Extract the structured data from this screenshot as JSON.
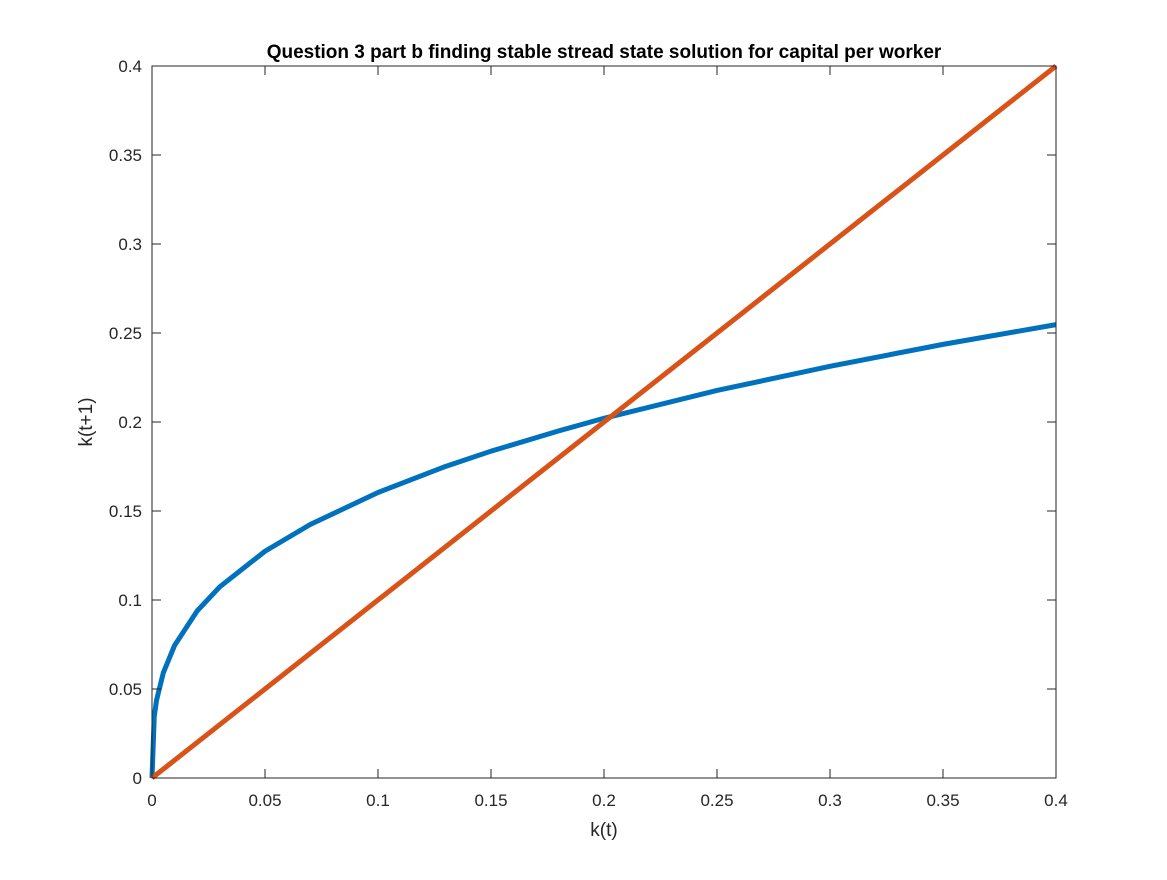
{
  "chart_data": {
    "type": "line",
    "title": "Question 3 part b finding stable stread state solution for capital per worker",
    "xlabel": "k(t)",
    "ylabel": "k(t+1)",
    "xlim": [
      0,
      0.4
    ],
    "ylim": [
      0,
      0.4
    ],
    "xticks": [
      0,
      0.05,
      0.1,
      0.15,
      0.2,
      0.25,
      0.3,
      0.35,
      0.4
    ],
    "xtick_labels": [
      "0",
      "0.05",
      "0.1",
      "0.15",
      "0.2",
      "0.25",
      "0.3",
      "0.35",
      "0.4"
    ],
    "yticks": [
      0,
      0.05,
      0.1,
      0.15,
      0.2,
      0.25,
      0.3,
      0.35,
      0.4
    ],
    "ytick_labels": [
      "0",
      "0.05",
      "0.1",
      "0.15",
      "0.2",
      "0.25",
      "0.3",
      "0.35",
      "0.4"
    ],
    "grid": false,
    "box": true,
    "series": [
      {
        "color": "#0072BD",
        "x": [
          0,
          0.001,
          0.002,
          0.005,
          0.01,
          0.02,
          0.03,
          0.05,
          0.07,
          0.1,
          0.13,
          0.15,
          0.18,
          0.2,
          0.25,
          0.3,
          0.35,
          0.4
        ],
        "y": [
          0,
          0.0346,
          0.0436,
          0.0591,
          0.0745,
          0.0939,
          0.1074,
          0.1274,
          0.1424,
          0.1604,
          0.1751,
          0.1836,
          0.195,
          0.2021,
          0.2177,
          0.2313,
          0.2436,
          0.2547
        ]
      },
      {
        "color": "#D95319",
        "x": [
          0,
          0.4
        ],
        "y": [
          0,
          0.4
        ]
      }
    ]
  }
}
